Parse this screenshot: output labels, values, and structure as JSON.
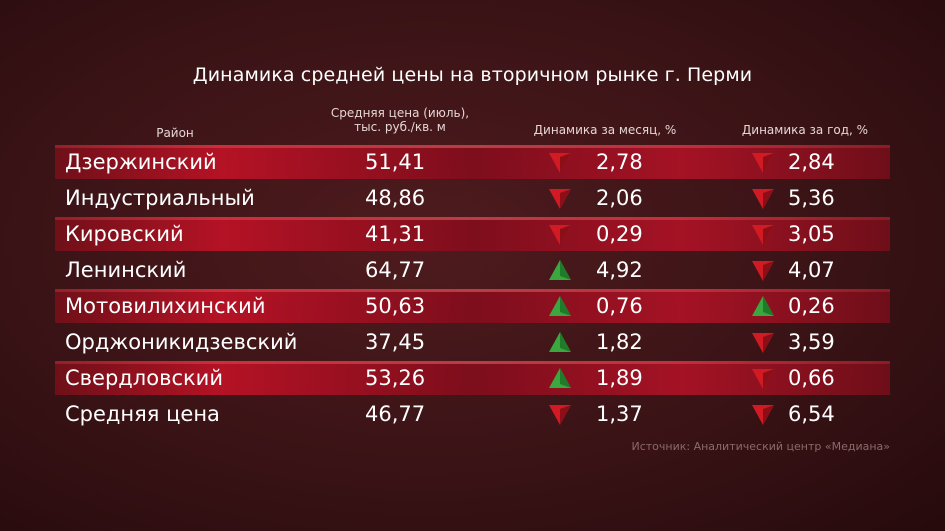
{
  "title": "Динамика средней цены на вторичном рынке г. Перми",
  "headers": {
    "region": "Район",
    "price_line1": "Средняя цена (июль),",
    "price_line2": "тыс. руб./кв. м",
    "month": "Динамика за месяц, %",
    "year": "Динамика за год, %"
  },
  "source": "Источник: Аналитический центр «Медиана»",
  "colors": {
    "down": "#d11a24",
    "up": "#3aa83f"
  },
  "chart_data": {
    "type": "table",
    "title": "Динамика средней цены на вторичном рынке г. Перми",
    "columns": [
      "Район",
      "Средняя цена (июль), тыс. руб./кв. м",
      "Динамика за месяц, %",
      "Динамика за год, %"
    ],
    "rows": [
      {
        "name": "Дзержинский",
        "price": "51,41",
        "month": "2,78",
        "month_dir": "down",
        "year": "2,84",
        "year_dir": "down"
      },
      {
        "name": "Индустриальный",
        "price": "48,86",
        "month": "2,06",
        "month_dir": "down",
        "year": "5,36",
        "year_dir": "down"
      },
      {
        "name": "Кировский",
        "price": "41,31",
        "month": "0,29",
        "month_dir": "down",
        "year": "3,05",
        "year_dir": "down"
      },
      {
        "name": "Ленинский",
        "price": "64,77",
        "month": "4,92",
        "month_dir": "up",
        "year": "4,07",
        "year_dir": "down"
      },
      {
        "name": "Мотовилихинский",
        "price": "50,63",
        "month": "0,76",
        "month_dir": "up",
        "year": "0,26",
        "year_dir": "up"
      },
      {
        "name": "Орджоникидзевский",
        "price": "37,45",
        "month": "1,82",
        "month_dir": "up",
        "year": "3,59",
        "year_dir": "down"
      },
      {
        "name": "Свердловский",
        "price": "53,26",
        "month": "1,89",
        "month_dir": "up",
        "year": "0,66",
        "year_dir": "down"
      },
      {
        "name": "Средняя цена",
        "price": "46,77",
        "month": "1,37",
        "month_dir": "down",
        "year": "6,54",
        "year_dir": "down"
      }
    ]
  }
}
